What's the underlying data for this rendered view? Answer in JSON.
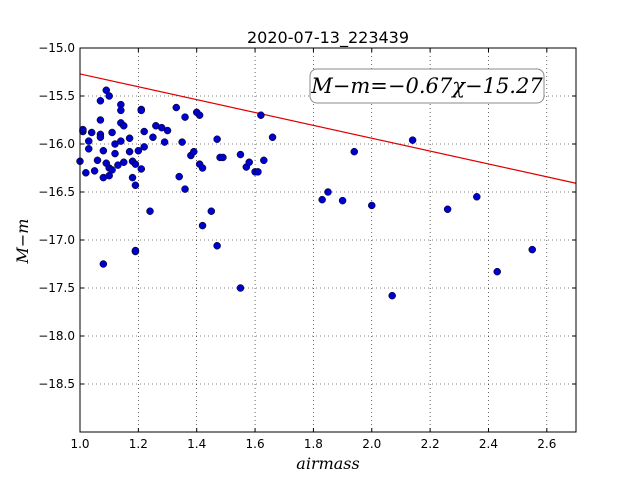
{
  "chart_data": {
    "type": "scatter",
    "title": "2020-07-13_223439",
    "xlabel": "airmass",
    "ylabel": "M−m",
    "annotation": "M−m=−0.67χ−15.27",
    "xlim": [
      1.0,
      2.7
    ],
    "ylim": [
      -15.0,
      -19.0
    ],
    "y_inverted": true,
    "grid": true,
    "x_ticks": [
      1.0,
      1.2,
      1.4,
      1.6,
      1.8,
      2.0,
      2.2,
      2.4,
      2.6
    ],
    "x_tick_labels": [
      "1.0",
      "1.2",
      "1.4",
      "1.6",
      "1.8",
      "2.0",
      "2.2",
      "2.4",
      "2.6"
    ],
    "y_ticks": [
      -15.0,
      -15.5,
      -16.0,
      -16.5,
      -17.0,
      -17.5,
      -18.0,
      -18.5
    ],
    "y_tick_labels": [
      "−15.0",
      "−15.5",
      "−16.0",
      "−16.5",
      "−17.0",
      "−17.5",
      "−18.0",
      "−18.5"
    ],
    "fit": {
      "slope": -0.67,
      "intercept": -15.27,
      "color": "#e00000"
    },
    "marker_color": "#0000cc",
    "points": [
      {
        "x": 1.0,
        "y": -16.18
      },
      {
        "x": 1.01,
        "y": -15.87
      },
      {
        "x": 1.01,
        "y": -15.85
      },
      {
        "x": 1.02,
        "y": -16.3
      },
      {
        "x": 1.03,
        "y": -15.97
      },
      {
        "x": 1.03,
        "y": -16.05
      },
      {
        "x": 1.04,
        "y": -15.88
      },
      {
        "x": 1.05,
        "y": -16.28
      },
      {
        "x": 1.06,
        "y": -16.17
      },
      {
        "x": 1.07,
        "y": -15.9
      },
      {
        "x": 1.07,
        "y": -15.93
      },
      {
        "x": 1.07,
        "y": -15.55
      },
      {
        "x": 1.07,
        "y": -15.75
      },
      {
        "x": 1.08,
        "y": -16.35
      },
      {
        "x": 1.08,
        "y": -16.07
      },
      {
        "x": 1.08,
        "y": -17.25
      },
      {
        "x": 1.09,
        "y": -15.44
      },
      {
        "x": 1.09,
        "y": -16.2
      },
      {
        "x": 1.1,
        "y": -15.5
      },
      {
        "x": 1.1,
        "y": -16.33
      },
      {
        "x": 1.1,
        "y": -16.25
      },
      {
        "x": 1.11,
        "y": -15.88
      },
      {
        "x": 1.11,
        "y": -16.27
      },
      {
        "x": 1.12,
        "y": -16.0
      },
      {
        "x": 1.12,
        "y": -16.1
      },
      {
        "x": 1.13,
        "y": -16.22
      },
      {
        "x": 1.14,
        "y": -15.97
      },
      {
        "x": 1.14,
        "y": -15.78
      },
      {
        "x": 1.14,
        "y": -15.59
      },
      {
        "x": 1.14,
        "y": -15.65
      },
      {
        "x": 1.15,
        "y": -16.19
      },
      {
        "x": 1.15,
        "y": -15.81
      },
      {
        "x": 1.17,
        "y": -16.08
      },
      {
        "x": 1.17,
        "y": -15.94
      },
      {
        "x": 1.18,
        "y": -16.18
      },
      {
        "x": 1.18,
        "y": -16.35
      },
      {
        "x": 1.19,
        "y": -16.43
      },
      {
        "x": 1.19,
        "y": -17.12
      },
      {
        "x": 1.19,
        "y": -17.11
      },
      {
        "x": 1.19,
        "y": -16.21
      },
      {
        "x": 1.2,
        "y": -16.07
      },
      {
        "x": 1.21,
        "y": -15.64
      },
      {
        "x": 1.21,
        "y": -15.65
      },
      {
        "x": 1.21,
        "y": -16.26
      },
      {
        "x": 1.22,
        "y": -15.87
      },
      {
        "x": 1.22,
        "y": -16.03
      },
      {
        "x": 1.24,
        "y": -16.7
      },
      {
        "x": 1.25,
        "y": -15.93
      },
      {
        "x": 1.26,
        "y": -15.81
      },
      {
        "x": 1.28,
        "y": -15.83
      },
      {
        "x": 1.29,
        "y": -15.98
      },
      {
        "x": 1.3,
        "y": -15.86
      },
      {
        "x": 1.33,
        "y": -15.62
      },
      {
        "x": 1.34,
        "y": -16.34
      },
      {
        "x": 1.35,
        "y": -15.98
      },
      {
        "x": 1.36,
        "y": -15.72
      },
      {
        "x": 1.36,
        "y": -16.47
      },
      {
        "x": 1.38,
        "y": -16.12
      },
      {
        "x": 1.39,
        "y": -16.08
      },
      {
        "x": 1.4,
        "y": -15.67
      },
      {
        "x": 1.41,
        "y": -15.7
      },
      {
        "x": 1.41,
        "y": -16.21
      },
      {
        "x": 1.42,
        "y": -16.25
      },
      {
        "x": 1.42,
        "y": -16.85
      },
      {
        "x": 1.45,
        "y": -16.7
      },
      {
        "x": 1.47,
        "y": -15.95
      },
      {
        "x": 1.47,
        "y": -17.06
      },
      {
        "x": 1.48,
        "y": -16.14
      },
      {
        "x": 1.49,
        "y": -16.14
      },
      {
        "x": 1.55,
        "y": -16.11
      },
      {
        "x": 1.55,
        "y": -17.5
      },
      {
        "x": 1.57,
        "y": -16.24
      },
      {
        "x": 1.58,
        "y": -16.19
      },
      {
        "x": 1.6,
        "y": -16.29
      },
      {
        "x": 1.61,
        "y": -16.29
      },
      {
        "x": 1.62,
        "y": -15.7
      },
      {
        "x": 1.63,
        "y": -16.17
      },
      {
        "x": 1.66,
        "y": -15.93
      },
      {
        "x": 1.83,
        "y": -16.58
      },
      {
        "x": 1.85,
        "y": -16.5
      },
      {
        "x": 1.9,
        "y": -16.59
      },
      {
        "x": 1.94,
        "y": -16.08
      },
      {
        "x": 2.0,
        "y": -16.64
      },
      {
        "x": 2.07,
        "y": -17.58
      },
      {
        "x": 2.14,
        "y": -15.96
      },
      {
        "x": 2.26,
        "y": -16.68
      },
      {
        "x": 2.36,
        "y": -16.55
      },
      {
        "x": 2.43,
        "y": -17.33
      },
      {
        "x": 2.55,
        "y": -17.1
      }
    ]
  }
}
